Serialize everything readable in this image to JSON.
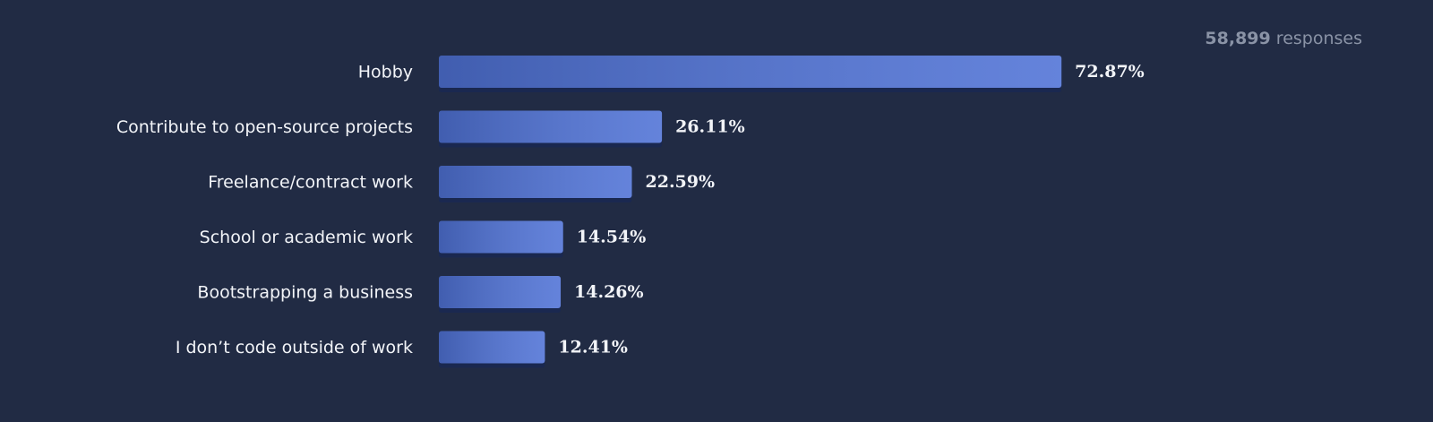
{
  "chart_data": {
    "type": "bar",
    "orientation": "horizontal",
    "responses": {
      "count": "58,899",
      "text": "responses"
    },
    "categories": [
      "Hobby",
      "Contribute to open-source projects",
      "Freelance/contract work",
      "School or academic work",
      "Bootstrapping a business",
      "I don’t code outside of work"
    ],
    "values": [
      72.87,
      26.11,
      22.59,
      14.54,
      14.26,
      12.41
    ],
    "value_labels": [
      "72.87%",
      "26.11%",
      "22.59%",
      "14.54%",
      "14.26%",
      "12.41%"
    ],
    "color": "#4f72d6"
  }
}
